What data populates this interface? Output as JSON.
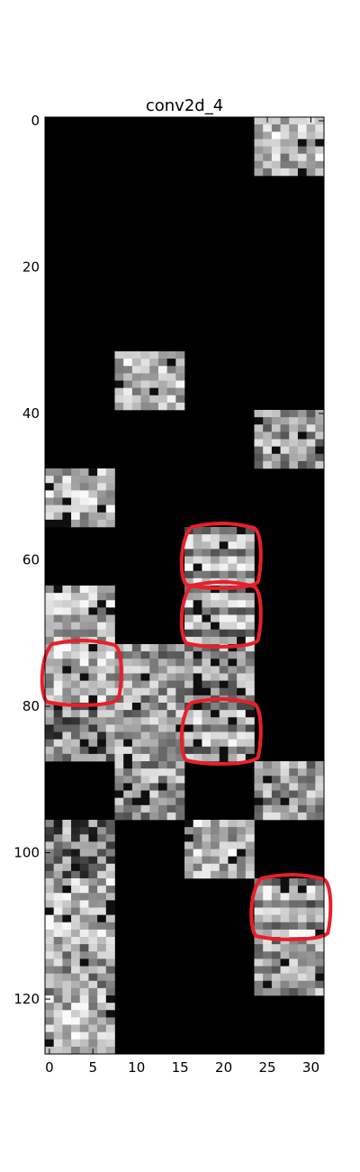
{
  "chart_data": {
    "type": "heatmap",
    "title": "conv2d_4",
    "xlabel": "",
    "ylabel": "",
    "colormap": "gray",
    "grid": false,
    "xlim": [
      -0.5,
      31.5
    ],
    "ylim": [
      127.5,
      -0.5
    ],
    "x_ticks": [
      0,
      5,
      10,
      15,
      20,
      25,
      30
    ],
    "y_ticks": [
      0,
      20,
      40,
      60,
      80,
      100,
      120
    ],
    "patch_size": [
      8,
      8
    ],
    "background_value": 0,
    "patches": [
      {
        "col": 3,
        "row": 0,
        "texture": "bright"
      },
      {
        "col": 1,
        "row": 4,
        "texture": "bright"
      },
      {
        "col": 3,
        "row": 5,
        "texture": "mid"
      },
      {
        "col": 0,
        "row": 6,
        "texture": "bright"
      },
      {
        "col": 2,
        "row": 7,
        "texture": "banded"
      },
      {
        "col": 0,
        "row": 8,
        "texture": "bright"
      },
      {
        "col": 2,
        "row": 8,
        "texture": "banded"
      },
      {
        "col": 0,
        "row": 9,
        "texture": "bright"
      },
      {
        "col": 1,
        "row": 9,
        "texture": "mid"
      },
      {
        "col": 2,
        "row": 9,
        "texture": "mid"
      },
      {
        "col": 0,
        "row": 10,
        "texture": "dark"
      },
      {
        "col": 1,
        "row": 10,
        "texture": "mid"
      },
      {
        "col": 2,
        "row": 10,
        "texture": "banded"
      },
      {
        "col": 1,
        "row": 11,
        "texture": "mid"
      },
      {
        "col": 3,
        "row": 11,
        "texture": "mid"
      },
      {
        "col": 0,
        "row": 12,
        "texture": "dark"
      },
      {
        "col": 2,
        "row": 12,
        "texture": "bright"
      },
      {
        "col": 0,
        "row": 13,
        "texture": "bright"
      },
      {
        "col": 3,
        "row": 13,
        "texture": "banded"
      },
      {
        "col": 0,
        "row": 14,
        "texture": "mid"
      },
      {
        "col": 3,
        "row": 14,
        "texture": "mid"
      },
      {
        "col": 0,
        "row": 15,
        "texture": "bright"
      }
    ],
    "annotations": [
      {
        "type": "hand-drawn-circle",
        "color": "#e8202a",
        "x": [
          16,
          24
        ],
        "y": [
          56,
          64
        ]
      },
      {
        "type": "hand-drawn-circle",
        "color": "#e8202a",
        "x": [
          16,
          24
        ],
        "y": [
          64,
          72
        ]
      },
      {
        "type": "hand-drawn-circle",
        "color": "#e8202a",
        "x": [
          0,
          8
        ],
        "y": [
          72,
          80
        ]
      },
      {
        "type": "hand-drawn-circle",
        "color": "#e8202a",
        "x": [
          16,
          24
        ],
        "y": [
          80,
          88
        ]
      },
      {
        "type": "hand-drawn-circle",
        "color": "#e8202a",
        "x": [
          24,
          32
        ],
        "y": [
          104,
          112
        ]
      }
    ]
  }
}
